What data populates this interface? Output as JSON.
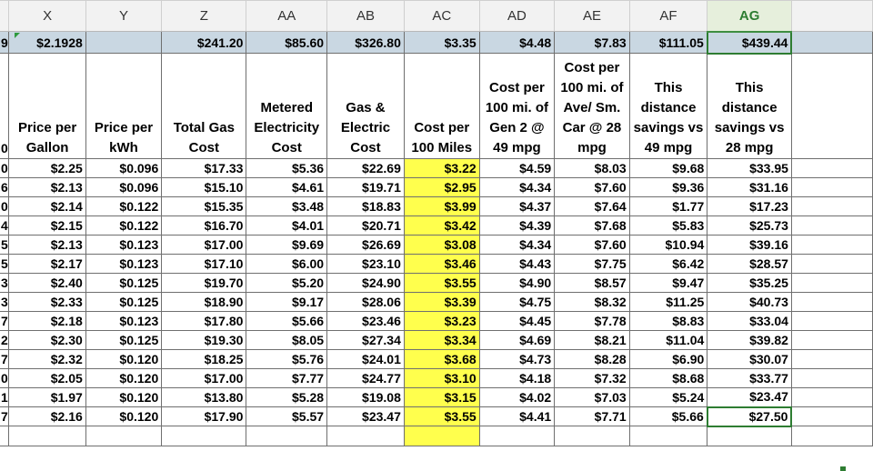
{
  "columns": [
    "X",
    "Y",
    "Z",
    "AA",
    "AB",
    "AC",
    "AD",
    "AE",
    "AF",
    "AG"
  ],
  "selected_column": "AG",
  "top_row": {
    "row_stub": "9",
    "values": [
      "$2.1928",
      "",
      "$241.20",
      "$85.60",
      "$326.80",
      "$3.35",
      "$4.48",
      "$7.83",
      "$111.05",
      "$439.44"
    ]
  },
  "headers": [
    "Price per Gallon",
    "Price per kWh",
    "Total Gas Cost",
    "Metered Electricity Cost",
    "Gas & Electric Cost",
    "Cost per 100 Miles",
    "Cost per 100 mi. of Gen 2 @ 49 mpg",
    "Cost per 100 mi. of Ave/ Sm. Car @ 28 mpg",
    "This distance savings vs 49 mpg",
    "This distance savings vs 28 mpg"
  ],
  "header_row_stub": "0",
  "rows": [
    {
      "stub": "0",
      "cells": [
        "$2.25",
        "$0.096",
        "$17.33",
        "$5.36",
        "$22.69",
        "$3.22",
        "$4.59",
        "$8.03",
        "$9.68",
        "$33.95"
      ]
    },
    {
      "stub": "6",
      "cells": [
        "$2.13",
        "$0.096",
        "$15.10",
        "$4.61",
        "$19.71",
        "$2.95",
        "$4.34",
        "$7.60",
        "$9.36",
        "$31.16"
      ]
    },
    {
      "stub": "0",
      "cells": [
        "$2.14",
        "$0.122",
        "$15.35",
        "$3.48",
        "$18.83",
        "$3.99",
        "$4.37",
        "$7.64",
        "$1.77",
        "$17.23"
      ]
    },
    {
      "stub": "4",
      "cells": [
        "$2.15",
        "$0.122",
        "$16.70",
        "$4.01",
        "$20.71",
        "$3.42",
        "$4.39",
        "$7.68",
        "$5.83",
        "$25.73"
      ]
    },
    {
      "stub": "5",
      "cells": [
        "$2.13",
        "$0.123",
        "$17.00",
        "$9.69",
        "$26.69",
        "$3.08",
        "$4.34",
        "$7.60",
        "$10.94",
        "$39.16"
      ]
    },
    {
      "stub": "5",
      "cells": [
        "$2.17",
        "$0.123",
        "$17.10",
        "$6.00",
        "$23.10",
        "$3.46",
        "$4.43",
        "$7.75",
        "$6.42",
        "$28.57"
      ]
    },
    {
      "stub": "3",
      "cells": [
        "$2.40",
        "$0.125",
        "$19.70",
        "$5.20",
        "$24.90",
        "$3.55",
        "$4.90",
        "$8.57",
        "$9.47",
        "$35.25"
      ]
    },
    {
      "stub": "3",
      "cells": [
        "$2.33",
        "$0.125",
        "$18.90",
        "$9.17",
        "$28.06",
        "$3.39",
        "$4.75",
        "$8.32",
        "$11.25",
        "$40.73"
      ]
    },
    {
      "stub": "7",
      "cells": [
        "$2.18",
        "$0.123",
        "$17.80",
        "$5.66",
        "$23.46",
        "$3.23",
        "$4.45",
        "$7.78",
        "$8.83",
        "$33.04"
      ]
    },
    {
      "stub": "2",
      "cells": [
        "$2.30",
        "$0.125",
        "$19.30",
        "$8.05",
        "$27.34",
        "$3.34",
        "$4.69",
        "$8.21",
        "$11.04",
        "$39.82"
      ]
    },
    {
      "stub": "7",
      "cells": [
        "$2.32",
        "$0.120",
        "$18.25",
        "$5.76",
        "$24.01",
        "$3.68",
        "$4.73",
        "$8.28",
        "$6.90",
        "$30.07"
      ]
    },
    {
      "stub": "0",
      "cells": [
        "$2.05",
        "$0.120",
        "$17.00",
        "$7.77",
        "$24.77",
        "$3.10",
        "$4.18",
        "$7.32",
        "$8.68",
        "$33.77"
      ]
    },
    {
      "stub": "1",
      "cells": [
        "$1.97",
        "$0.120",
        "$13.80",
        "$5.28",
        "$19.08",
        "$3.15",
        "$4.02",
        "$7.03",
        "$5.24",
        "$23.47"
      ]
    },
    {
      "stub": "7",
      "cells": [
        "$2.16",
        "$0.120",
        "$17.90",
        "$5.57",
        "$23.47",
        "$3.55",
        "$4.41",
        "$7.71",
        "$5.66",
        "$27.50"
      ]
    }
  ],
  "highlight_color": "#ffff4d",
  "selection_color": "#2e7d32"
}
